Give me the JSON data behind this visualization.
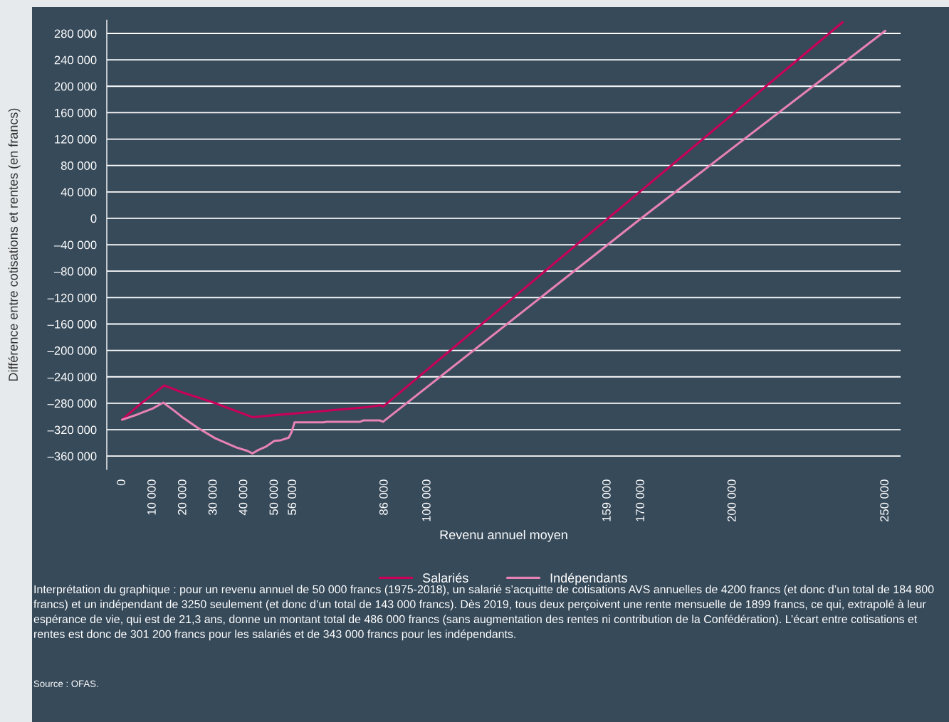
{
  "chart_data": {
    "type": "line",
    "xlabel": "Revenu annuel moyen",
    "ylabel": "Différence entre cotisations et rentes (en francs)",
    "xlim": [
      -5000,
      255000
    ],
    "ylim": [
      -380000,
      300000
    ],
    "xticks": [
      0,
      {
        "value": 10000,
        "label": "10 000"
      },
      {
        "value": 20000,
        "label": "20 000"
      },
      {
        "value": 30000,
        "label": "30 000"
      },
      {
        "value": 40000,
        "label": "40 000"
      },
      {
        "value": 50000,
        "label": "50 000"
      },
      {
        "value": 56000,
        "label": "56 000"
      },
      {
        "value": 86000,
        "label": "86 000"
      },
      {
        "value": 100000,
        "label": "100 000"
      },
      {
        "value": 159000,
        "label": "159 000"
      },
      {
        "value": 170000,
        "label": "170 000"
      },
      {
        "value": 200000,
        "label": "200 000"
      },
      {
        "value": 250000,
        "label": "250 000"
      }
    ],
    "yticks": [
      {
        "value": 280000,
        "label": "280 000"
      },
      {
        "value": 240000,
        "label": "240 000"
      },
      {
        "value": 200000,
        "label": "200 000"
      },
      {
        "value": 160000,
        "label": "160 000"
      },
      {
        "value": 120000,
        "label": "120 000"
      },
      {
        "value": 80000,
        "label": "80 000"
      },
      {
        "value": 40000,
        "label": "40 000"
      },
      0,
      {
        "value": -40000,
        "label": "–40 000"
      },
      {
        "value": -80000,
        "label": "–80 000"
      },
      {
        "value": -120000,
        "label": "–120 000"
      },
      {
        "value": -160000,
        "label": "–160 000"
      },
      {
        "value": -200000,
        "label": "–200 000"
      },
      {
        "value": -240000,
        "label": "–240 000"
      },
      {
        "value": -280000,
        "label": "–280 000"
      },
      {
        "value": -320000,
        "label": "–320 000"
      },
      {
        "value": -360000,
        "label": "–360 000"
      }
    ],
    "grid": "y",
    "legend": "bottom",
    "line_style": "solid",
    "marker": "none",
    "series": [
      {
        "name": "Salariés",
        "color": "#c8005a",
        "x": [
          0,
          5000,
          13800,
          20000,
          30000,
          42700,
          50000,
          60000,
          70000,
          80000,
          84500,
          85500,
          236000
        ],
        "values": [
          -305000,
          -285000,
          -253000,
          -264000,
          -279000,
          -301000,
          -298000,
          -294000,
          -290000,
          -286000,
          -283000,
          -285000,
          297000
        ]
      },
      {
        "name": "Indépendants",
        "color": "#e882b4",
        "x": [
          0,
          5000,
          10000,
          13500,
          17000,
          20000,
          24700,
          30500,
          37500,
          41000,
          42700,
          44500,
          47000,
          49900,
          52000,
          54600,
          55500,
          56500,
          66000,
          67000,
          78000,
          79000,
          84500,
          85500,
          170000,
          250000
        ],
        "values": [
          -305000,
          -297000,
          -288000,
          -279000,
          -291000,
          -302000,
          -317000,
          -333000,
          -347000,
          -352000,
          -356000,
          -351000,
          -346000,
          -337000,
          -336000,
          -332000,
          -324000,
          -309000,
          -309000,
          -308000,
          -308000,
          -306000,
          -306000,
          -308000,
          0,
          284000
        ]
      }
    ],
    "annotations": [
      "Interprétation du graphique : pour un revenu annuel de 50 000 francs (1975-2018), un salarié s’acquitte de cotisations AVS annuelles de 4200 francs (et donc d’un total de 184 800 francs) et un indépendant de 3250 seulement (et donc d’un total de 143 000 francs). Dès 2019, tous deux perçoivent une rente mensuelle de 1899 francs, ce qui, extrapolé à leur espérance de vie, qui est de 21,3 ans, donne un montant total de 486 000 francs (sans augmentation des rentes ni contribution de la Confédération). L’écart entre cotisations et rentes est donc de 301 200 francs pour les salariés et de 343 000 francs pour les indépendants.",
      "Source : OFAS."
    ]
  }
}
